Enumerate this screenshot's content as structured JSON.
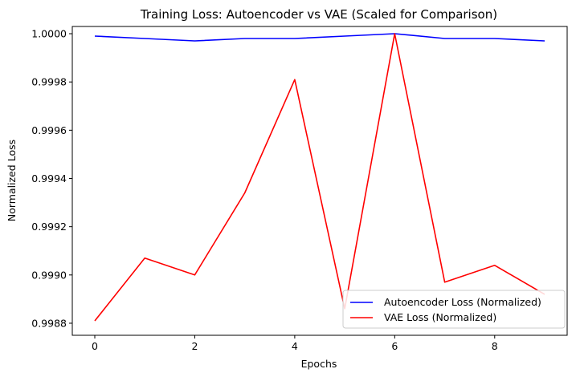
{
  "chart_data": {
    "type": "line",
    "title": "Training Loss: Autoencoder vs VAE (Scaled for Comparison)",
    "xlabel": "Epochs",
    "ylabel": "Normalized Loss",
    "x": [
      0,
      1,
      2,
      3,
      4,
      5,
      6,
      7,
      8,
      9
    ],
    "xlim": [
      -0.45,
      9.45
    ],
    "ylim": [
      0.99875,
      1.00003
    ],
    "xticks": [
      0,
      2,
      4,
      6,
      8
    ],
    "xtick_labels": [
      "0",
      "2",
      "4",
      "6",
      "8"
    ],
    "yticks": [
      0.9988,
      0.999,
      0.9992,
      0.9994,
      0.9996,
      0.9998,
      1.0
    ],
    "ytick_labels": [
      "0.9988",
      "0.9990",
      "0.9992",
      "0.9994",
      "0.9996",
      "0.9998",
      "1.0000"
    ],
    "grid": false,
    "legend_position": "lower-right",
    "series": [
      {
        "name": "Autoencoder Loss (Normalized)",
        "color": "#0000ff",
        "values": [
          0.99999,
          0.99998,
          0.99997,
          0.99998,
          0.99998,
          0.99999,
          1.0,
          0.99998,
          0.99998,
          0.99997
        ]
      },
      {
        "name": "VAE Loss (Normalized)",
        "color": "#ff0000",
        "values": [
          0.99881,
          0.99907,
          0.999,
          0.99934,
          0.99981,
          0.99886,
          1.0,
          0.99897,
          0.99904,
          0.99892
        ]
      }
    ]
  }
}
